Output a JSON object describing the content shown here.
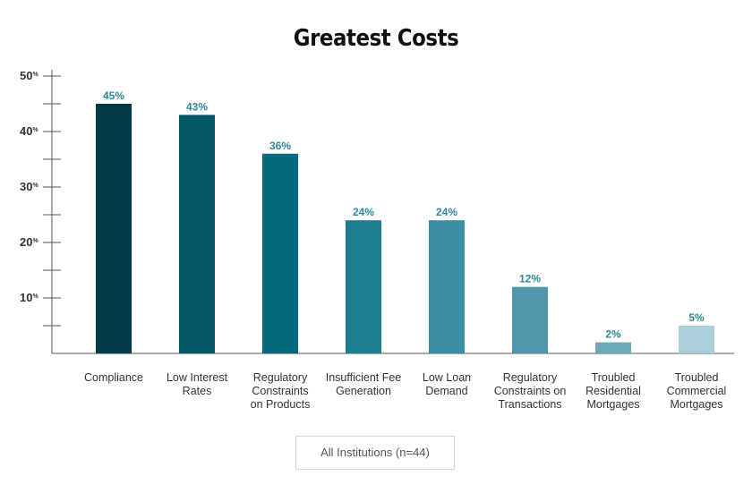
{
  "chart_data": {
    "type": "bar",
    "title": "Greatest Costs",
    "categories": [
      [
        "Compliance"
      ],
      [
        "Low Interest",
        "Rates"
      ],
      [
        "Regulatory",
        "Constraints",
        "on Products"
      ],
      [
        "Insufficient Fee",
        "Generation"
      ],
      [
        "Low Loan",
        "Demand"
      ],
      [
        "Regulatory",
        "Constraints on",
        "Transactions"
      ],
      [
        "Troubled",
        "Residential",
        "Mortgages"
      ],
      [
        "Troubled",
        "Commercial",
        "Mortgages"
      ]
    ],
    "values": [
      45,
      43,
      36,
      24,
      24,
      12,
      2,
      5
    ],
    "value_labels": [
      "45%",
      "43%",
      "36%",
      "24%",
      "24%",
      "12%",
      "2%",
      "5%"
    ],
    "colors": [
      "#033a47",
      "#055666",
      "#06687c",
      "#1e7d91",
      "#3b8ea1",
      "#5098a9",
      "#6ea9b7",
      "#a9d0d8"
    ],
    "ylim": [
      0,
      50
    ],
    "yticks": [
      10,
      20,
      30,
      40,
      50
    ],
    "ytick_labels": [
      "10",
      "20",
      "30",
      "40",
      "50"
    ],
    "ytick_suffix": "%",
    "xlabel": "",
    "ylabel": "",
    "legend": "All Institutions (n=44)"
  }
}
